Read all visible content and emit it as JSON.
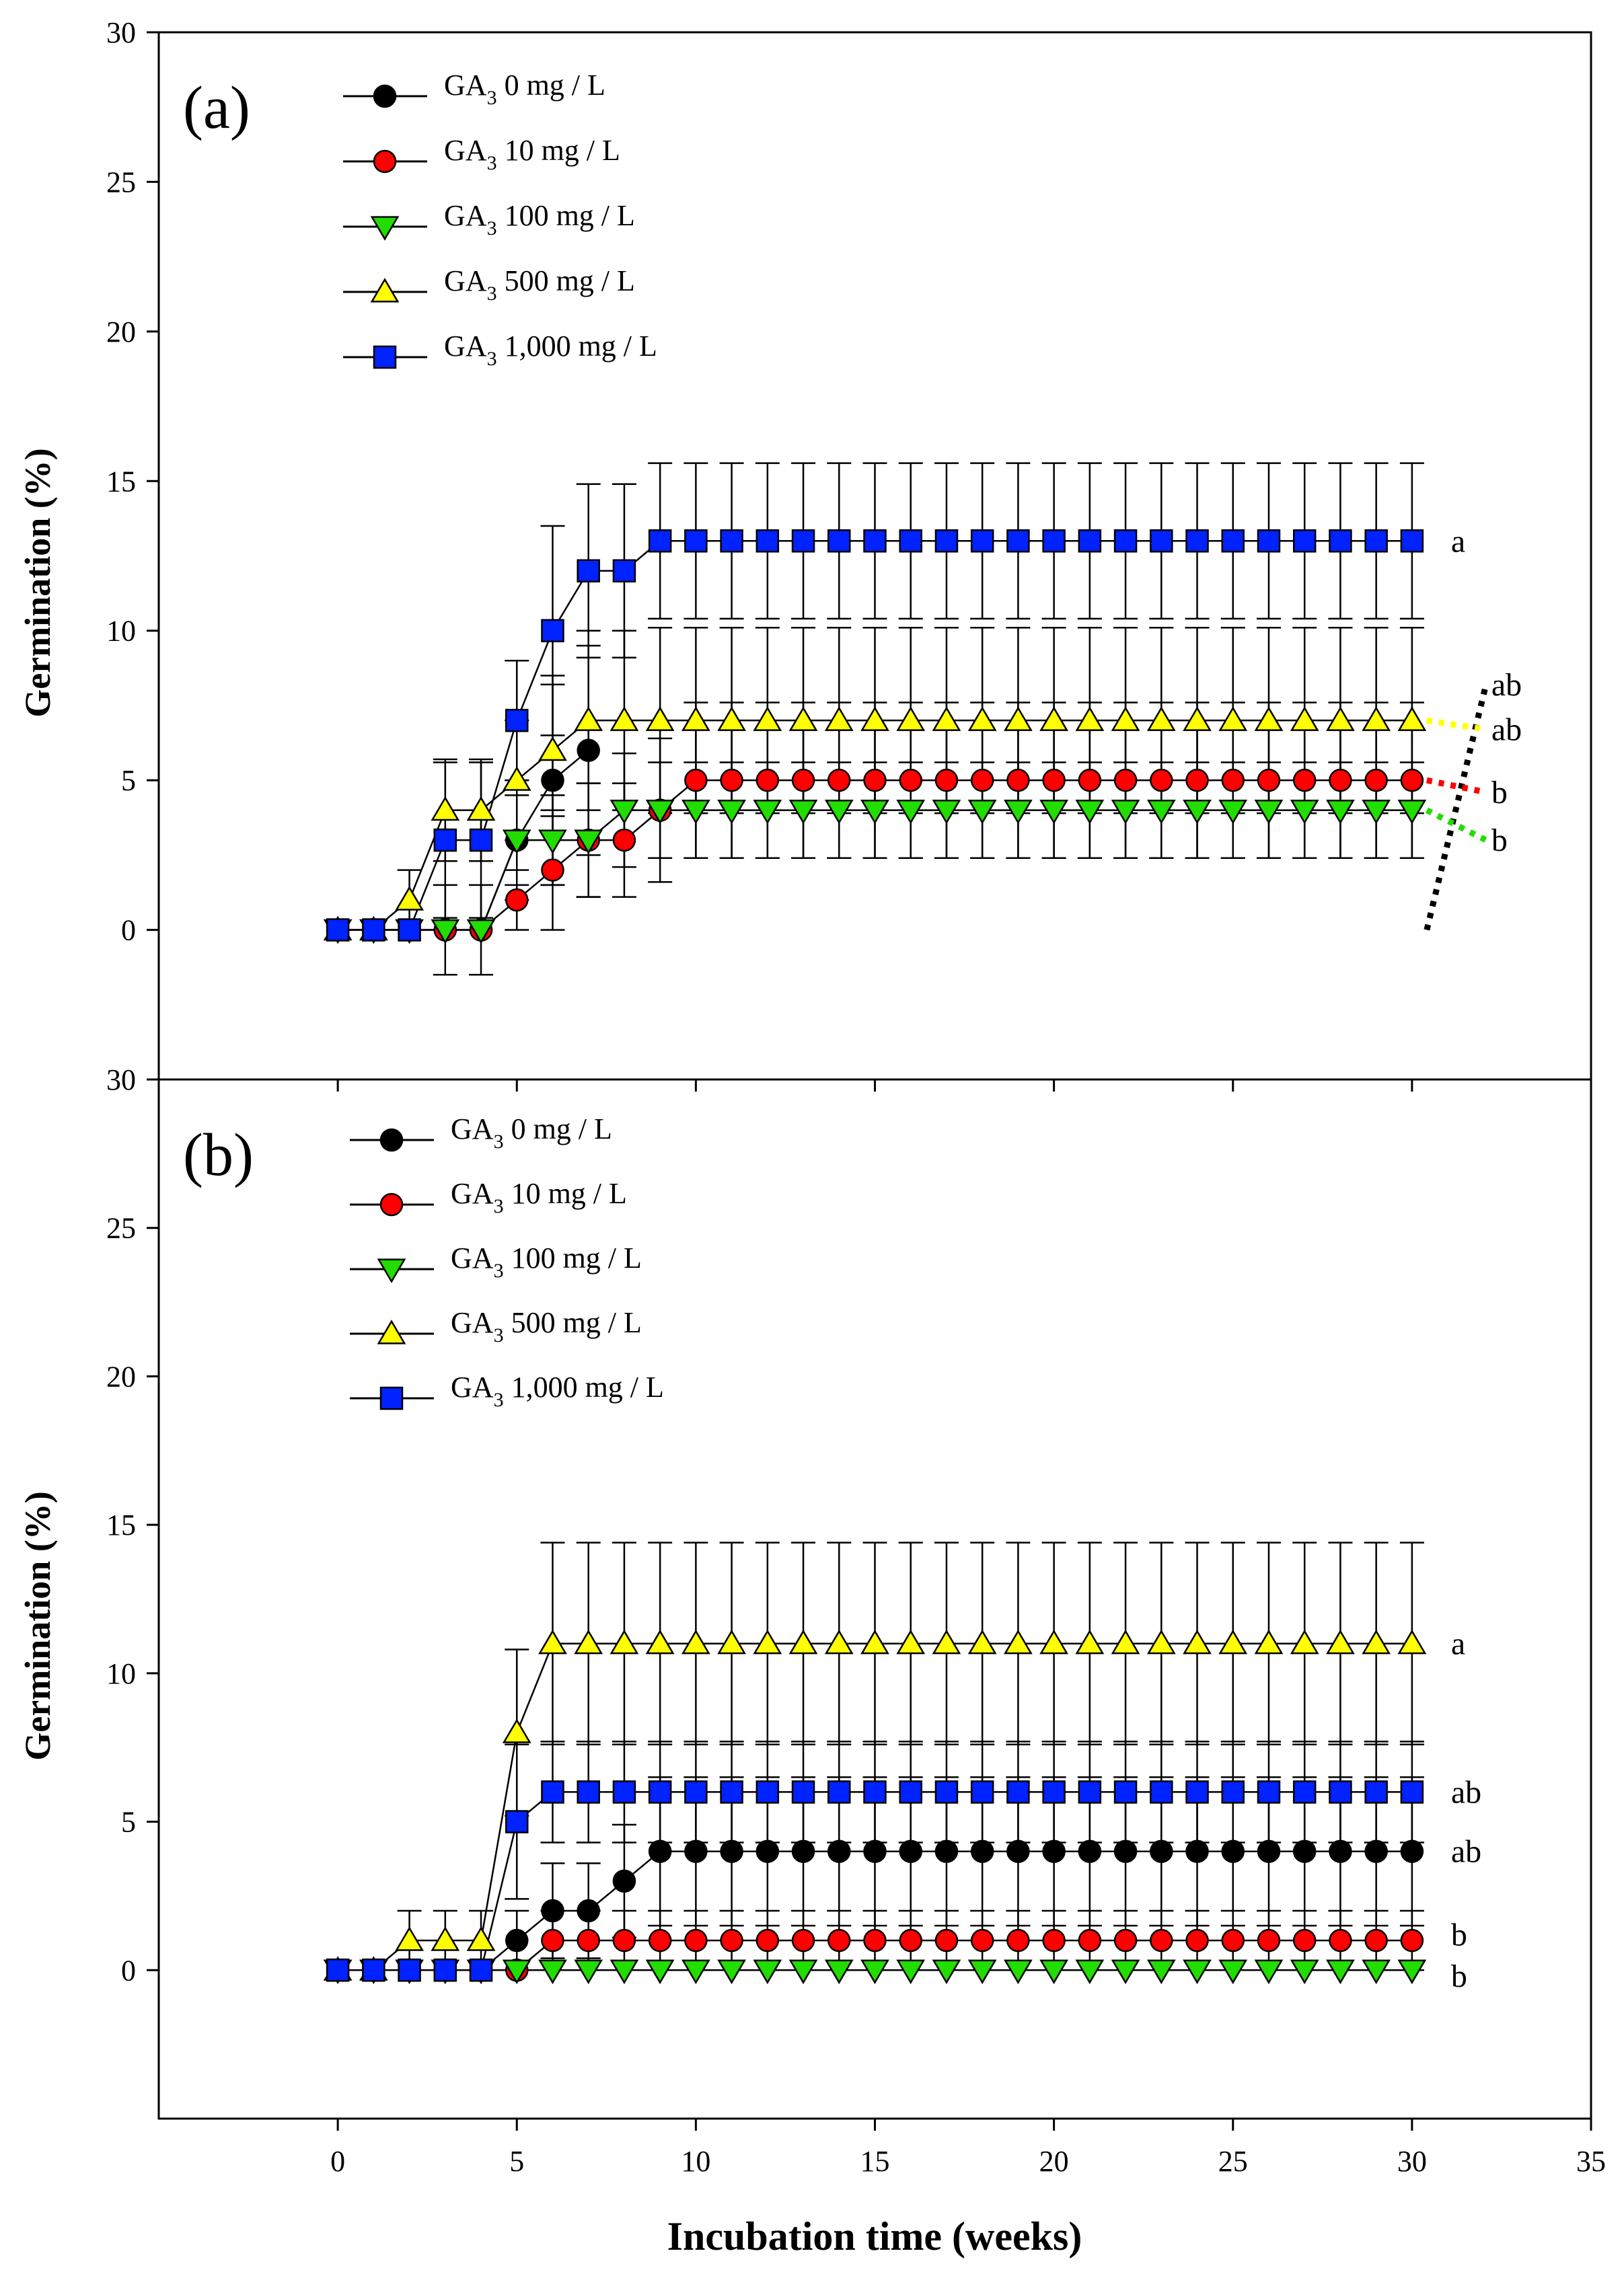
{
  "colors": {
    "GA3_0": "#000000",
    "GA3_10": "#ff0000",
    "GA3_100": "#22dd00",
    "GA3_500": "#ffff00",
    "GA3_1000": "#0022ff"
  },
  "shared": {
    "xlabel": "Incubation time (weeks)",
    "ylabel": "Germination (%)",
    "xlim": [
      -5,
      35
    ],
    "xticks": [
      0,
      5,
      10,
      15,
      20,
      25,
      30,
      35
    ],
    "ylim": [
      -5,
      30
    ],
    "yticks": [
      0,
      5,
      10,
      15,
      20,
      25,
      30
    ]
  },
  "chart_data": [
    {
      "type": "line",
      "panel_label": "(a)",
      "x": [
        0,
        1,
        2,
        3,
        4,
        5,
        6,
        7,
        8,
        9,
        10,
        11,
        12,
        13,
        14,
        15,
        16,
        17,
        18,
        19,
        20,
        21,
        22,
        23,
        24,
        25,
        26,
        27,
        28,
        29,
        30
      ],
      "series": [
        {
          "key": "GA3_0",
          "name": "GA3 0 mg / L",
          "legend_main": "GA",
          "legend_sub": "3",
          "legend_rest": " 0 mg / L",
          "marker": "circle",
          "values": [
            0,
            0,
            0,
            0,
            0,
            3,
            5,
            6,
            null,
            null,
            null,
            null,
            null,
            null,
            null,
            null,
            null,
            null,
            null,
            null,
            null,
            null,
            null,
            null,
            null,
            null,
            null,
            null,
            null,
            null,
            null
          ],
          "err": [
            0,
            0,
            0,
            1.5,
            1.5,
            2.0,
            3.5,
            3.5,
            0,
            0,
            0,
            0,
            0,
            0,
            0,
            0,
            0,
            0,
            0,
            0,
            0,
            0,
            0,
            0,
            0,
            0,
            0,
            0,
            0,
            0,
            0
          ]
        },
        {
          "key": "GA3_10",
          "name": "GA3 10 mg / L",
          "legend_main": "GA",
          "legend_sub": "3",
          "legend_rest": " 10  mg / L",
          "marker": "circle",
          "values": [
            0,
            0,
            0,
            0,
            0,
            1,
            2,
            3,
            3,
            4,
            5,
            5,
            5,
            5,
            5,
            5,
            5,
            5,
            5,
            5,
            5,
            5,
            5,
            5,
            5,
            5,
            5,
            5,
            5,
            5,
            5
          ],
          "err": [
            0,
            0,
            0,
            0,
            0,
            1.0,
            2.0,
            1.9,
            1.9,
            2.4,
            2.6,
            2.6,
            2.6,
            2.6,
            2.6,
            2.6,
            2.6,
            2.6,
            2.6,
            2.6,
            2.6,
            2.6,
            2.6,
            2.6,
            2.6,
            2.6,
            2.6,
            2.6,
            2.6,
            2.6,
            2.6
          ]
        },
        {
          "key": "GA3_100",
          "name": "GA3 100 mg / L",
          "legend_main": "GA",
          "legend_sub": "3",
          "legend_rest": " 100  mg / L",
          "marker": "tri-down",
          "values": [
            0,
            0,
            0,
            0,
            0,
            3,
            3,
            3,
            4,
            4,
            4,
            4,
            4,
            4,
            4,
            4,
            4,
            4,
            4,
            4,
            4,
            4,
            4,
            4,
            4,
            4,
            4,
            4,
            4,
            4,
            4
          ],
          "err": [
            0,
            0,
            0,
            0,
            0,
            1.5,
            1.5,
            1.9,
            1.9,
            1.6,
            1.6,
            1.6,
            1.6,
            1.6,
            1.6,
            1.6,
            1.6,
            1.6,
            1.6,
            1.6,
            1.6,
            1.6,
            1.6,
            1.6,
            1.6,
            1.6,
            1.6,
            1.6,
            1.6,
            1.6,
            1.6
          ]
        },
        {
          "key": "GA3_500",
          "name": "GA3 500 mg / L",
          "legend_main": "GA",
          "legend_sub": "3",
          "legend_rest": " 500  mg / L",
          "marker": "tri-up",
          "values": [
            0,
            0,
            1,
            4,
            4,
            5,
            6,
            7,
            7,
            7,
            7,
            7,
            7,
            7,
            7,
            7,
            7,
            7,
            7,
            7,
            7,
            7,
            7,
            7,
            7,
            7,
            7,
            7,
            7,
            7,
            7
          ],
          "err": [
            0,
            0,
            1.0,
            1.7,
            1.7,
            2.0,
            2.2,
            3.0,
            3.0,
            3.1,
            3.1,
            3.1,
            3.1,
            3.1,
            3.1,
            3.1,
            3.1,
            3.1,
            3.1,
            3.1,
            3.1,
            3.1,
            3.1,
            3.1,
            3.1,
            3.1,
            3.1,
            3.1,
            3.1,
            3.1,
            3.1
          ]
        },
        {
          "key": "GA3_1000",
          "name": "GA3 1,000 mg / L",
          "legend_main": "GA",
          "legend_sub": "3",
          "legend_rest": " 1,000  mg / L",
          "marker": "square",
          "values": [
            0,
            0,
            0,
            3,
            3,
            7,
            10,
            12,
            12,
            13,
            13,
            13,
            13,
            13,
            13,
            13,
            13,
            13,
            13,
            13,
            13,
            13,
            13,
            13,
            13,
            13,
            13,
            13,
            13,
            13,
            13
          ],
          "err": [
            0,
            0,
            0,
            2.6,
            2.6,
            2.0,
            3.5,
            2.9,
            2.9,
            2.6,
            2.6,
            2.6,
            2.6,
            2.6,
            2.6,
            2.6,
            2.6,
            2.6,
            2.6,
            2.6,
            2.6,
            2.6,
            2.6,
            2.6,
            2.6,
            2.6,
            2.6,
            2.6,
            2.6,
            2.6,
            2.6
          ]
        }
      ],
      "significance": [
        {
          "label": "a",
          "series": "GA3_1000",
          "value": 13,
          "dotted": false
        },
        {
          "label": "ab",
          "series": "GA3_0",
          "value": 8.2,
          "dotted": true
        },
        {
          "label": "ab",
          "series": "GA3_500",
          "value": 6.7,
          "dotted": true
        },
        {
          "label": "b",
          "series": "GA3_10",
          "value": 4.6,
          "dotted": true
        },
        {
          "label": "b",
          "series": "GA3_100",
          "value": 3.0,
          "dotted": true
        }
      ]
    },
    {
      "type": "line",
      "panel_label": "(b)",
      "x": [
        0,
        1,
        2,
        3,
        4,
        5,
        6,
        7,
        8,
        9,
        10,
        11,
        12,
        13,
        14,
        15,
        16,
        17,
        18,
        19,
        20,
        21,
        22,
        23,
        24,
        25,
        26,
        27,
        28,
        29,
        30
      ],
      "series": [
        {
          "key": "GA3_0",
          "name": "GA3 0 mg / L",
          "legend_main": "GA",
          "legend_sub": "3",
          "legend_rest": " 0 mg / L",
          "marker": "circle",
          "values": [
            0,
            0,
            0,
            0,
            0,
            1,
            2,
            2,
            3,
            4,
            4,
            4,
            4,
            4,
            4,
            4,
            4,
            4,
            4,
            4,
            4,
            4,
            4,
            4,
            4,
            4,
            4,
            4,
            4,
            4,
            4
          ],
          "err": [
            0,
            0,
            0,
            0,
            0,
            1.0,
            1.6,
            1.6,
            1.9,
            2.5,
            2.5,
            2.5,
            2.5,
            2.5,
            2.5,
            2.5,
            2.5,
            2.5,
            2.5,
            2.5,
            2.5,
            2.5,
            2.5,
            2.5,
            2.5,
            2.5,
            2.5,
            2.5,
            2.5,
            2.5,
            2.5
          ]
        },
        {
          "key": "GA3_10",
          "name": "GA3 10 mg / L",
          "legend_main": "GA",
          "legend_sub": "3",
          "legend_rest": " 10  mg / L",
          "marker": "circle",
          "values": [
            0,
            0,
            0,
            0,
            0,
            0,
            1,
            1,
            1,
            1,
            1,
            1,
            1,
            1,
            1,
            1,
            1,
            1,
            1,
            1,
            1,
            1,
            1,
            1,
            1,
            1,
            1,
            1,
            1,
            1,
            1
          ],
          "err": [
            0,
            0,
            0,
            0,
            0,
            0,
            1.0,
            1.0,
            1.0,
            1.0,
            1.0,
            1.0,
            1.0,
            1.0,
            1.0,
            1.0,
            1.0,
            1.0,
            1.0,
            1.0,
            1.0,
            1.0,
            1.0,
            1.0,
            1.0,
            1.0,
            1.0,
            1.0,
            1.0,
            1.0,
            1.0
          ]
        },
        {
          "key": "GA3_100",
          "name": "GA3 100 mg / L",
          "legend_main": "GA",
          "legend_sub": "3",
          "legend_rest": " 100  mg / L",
          "marker": "tri-down",
          "values": [
            0,
            0,
            0,
            0,
            0,
            0,
            0,
            0,
            0,
            0,
            0,
            0,
            0,
            0,
            0,
            0,
            0,
            0,
            0,
            0,
            0,
            0,
            0,
            0,
            0,
            0,
            0,
            0,
            0,
            0,
            0
          ],
          "err": [
            0,
            0,
            0,
            0,
            0,
            0,
            0,
            0,
            0,
            0,
            0,
            0,
            0,
            0,
            0,
            0,
            0,
            0,
            0,
            0,
            0,
            0,
            0,
            0,
            0,
            0,
            0,
            0,
            0,
            0,
            0
          ]
        },
        {
          "key": "GA3_500",
          "name": "GA3 500 mg / L",
          "legend_main": "GA",
          "legend_sub": "3",
          "legend_rest": " 500  mg / L",
          "marker": "tri-up",
          "values": [
            0,
            0,
            1,
            1,
            1,
            8,
            11,
            11,
            11,
            11,
            11,
            11,
            11,
            11,
            11,
            11,
            11,
            11,
            11,
            11,
            11,
            11,
            11,
            11,
            11,
            11,
            11,
            11,
            11,
            11,
            11
          ],
          "err": [
            0,
            0,
            1.0,
            1.0,
            1.0,
            2.8,
            3.4,
            3.4,
            3.4,
            3.4,
            3.4,
            3.4,
            3.4,
            3.4,
            3.4,
            3.4,
            3.4,
            3.4,
            3.4,
            3.4,
            3.4,
            3.4,
            3.4,
            3.4,
            3.4,
            3.4,
            3.4,
            3.4,
            3.4,
            3.4,
            3.4
          ]
        },
        {
          "key": "GA3_1000",
          "name": "GA3 1,000 mg / L",
          "legend_main": "GA",
          "legend_sub": "3",
          "legend_rest": " 1,000  mg / L",
          "marker": "square",
          "values": [
            0,
            0,
            0,
            0,
            0,
            5,
            6,
            6,
            6,
            6,
            6,
            6,
            6,
            6,
            6,
            6,
            6,
            6,
            6,
            6,
            6,
            6,
            6,
            6,
            6,
            6,
            6,
            6,
            6,
            6,
            6
          ],
          "err": [
            0,
            0,
            0,
            0,
            0,
            2.6,
            1.7,
            1.7,
            1.7,
            1.7,
            1.7,
            1.7,
            1.7,
            1.7,
            1.7,
            1.7,
            1.7,
            1.7,
            1.7,
            1.7,
            1.7,
            1.7,
            1.7,
            1.7,
            1.7,
            1.7,
            1.7,
            1.7,
            1.7,
            1.7,
            1.7
          ]
        }
      ],
      "significance": [
        {
          "label": "a",
          "series": "GA3_500",
          "value": 11,
          "dotted": false
        },
        {
          "label": "ab",
          "series": "GA3_1000",
          "value": 6,
          "dotted": false
        },
        {
          "label": "ab",
          "series": "GA3_0",
          "value": 4,
          "dotted": false
        },
        {
          "label": "b",
          "series": "GA3_10",
          "value": 1.2,
          "dotted": false
        },
        {
          "label": "b",
          "series": "GA3_100",
          "value": -0.2,
          "dotted": false
        }
      ]
    }
  ]
}
